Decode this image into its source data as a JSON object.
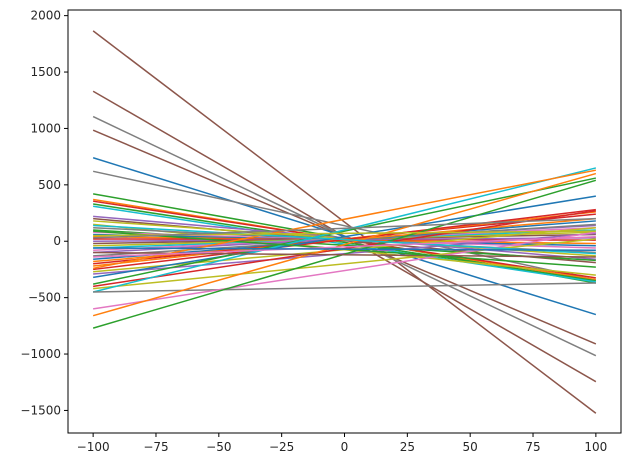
{
  "chart_data": {
    "type": "line",
    "title": "",
    "xlabel": "",
    "ylabel": "",
    "xlim": [
      -110,
      110
    ],
    "ylim": [
      -1700,
      2050
    ],
    "grid": false,
    "legend": "none",
    "x_ticks": [
      -100,
      -75,
      -50,
      -25,
      0,
      25,
      50,
      75,
      100
    ],
    "y_ticks": [
      -1500,
      -1000,
      -500,
      0,
      500,
      1000,
      1500,
      2000
    ],
    "series": [
      {
        "x": [
          -100,
          100
        ],
        "y": [
          1865,
          -1525
        ],
        "color": "#8c564b"
      },
      {
        "x": [
          -100,
          100
        ],
        "y": [
          1330,
          -1245
        ],
        "color": "#8c564b"
      },
      {
        "x": [
          -100,
          100
        ],
        "y": [
          985,
          -910
        ],
        "color": "#8c564b"
      },
      {
        "x": [
          -100,
          100
        ],
        "y": [
          1105,
          -1015
        ],
        "color": "#7f7f7f"
      },
      {
        "x": [
          -100,
          100
        ],
        "y": [
          740,
          -650
        ],
        "color": "#1f77b4"
      },
      {
        "x": [
          -100,
          100
        ],
        "y": [
          620,
          -345
        ],
        "color": "#7f7f7f"
      },
      {
        "x": [
          -100,
          100
        ],
        "y": [
          420,
          -370
        ],
        "color": "#2ca02c"
      },
      {
        "x": [
          -100,
          100
        ],
        "y": [
          370,
          -340
        ],
        "color": "#ff7f0e"
      },
      {
        "x": [
          -100,
          100
        ],
        "y": [
          355,
          -325
        ],
        "color": "#d62728"
      },
      {
        "x": [
          -100,
          100
        ],
        "y": [
          330,
          -350
        ],
        "color": "#2ca02c"
      },
      {
        "x": [
          -100,
          100
        ],
        "y": [
          310,
          -360
        ],
        "color": "#17becf"
      },
      {
        "x": [
          -100,
          100
        ],
        "y": [
          220,
          -160
        ],
        "color": "#9467bd"
      },
      {
        "x": [
          -100,
          100
        ],
        "y": [
          200,
          -190
        ],
        "color": "#8c564b"
      },
      {
        "x": [
          -100,
          100
        ],
        "y": [
          180,
          -130
        ],
        "color": "#bcbd22"
      },
      {
        "x": [
          -100,
          100
        ],
        "y": [
          150,
          -300
        ],
        "color": "#bcbd22"
      },
      {
        "x": [
          -100,
          100
        ],
        "y": [
          120,
          -100
        ],
        "color": "#7f7f7f"
      },
      {
        "x": [
          -100,
          100
        ],
        "y": [
          100,
          -170
        ],
        "color": "#2ca02c"
      },
      {
        "x": [
          -100,
          100
        ],
        "y": [
          80,
          -60
        ],
        "color": "#e377c2"
      },
      {
        "x": [
          -100,
          100
        ],
        "y": [
          60,
          -40
        ],
        "color": "#1f77b4"
      },
      {
        "x": [
          -100,
          100
        ],
        "y": [
          40,
          -20
        ],
        "color": "#ff7f0e"
      },
      {
        "x": [
          -100,
          100
        ],
        "y": [
          20,
          10
        ],
        "color": "#d62728"
      },
      {
        "x": [
          -100,
          100
        ],
        "y": [
          0,
          30
        ],
        "color": "#9467bd"
      },
      {
        "x": [
          -100,
          100
        ],
        "y": [
          -20,
          60
        ],
        "color": "#8c564b"
      },
      {
        "x": [
          -100,
          100
        ],
        "y": [
          -40,
          80
        ],
        "color": "#bcbd22"
      },
      {
        "x": [
          -100,
          100
        ],
        "y": [
          -60,
          100
        ],
        "color": "#17becf"
      },
      {
        "x": [
          -100,
          100
        ],
        "y": [
          -80,
          120
        ],
        "color": "#e377c2"
      },
      {
        "x": [
          -100,
          100
        ],
        "y": [
          -100,
          140
        ],
        "color": "#9467bd"
      },
      {
        "x": [
          -100,
          100
        ],
        "y": [
          -130,
          150
        ],
        "color": "#7f7f7f"
      },
      {
        "x": [
          -100,
          100
        ],
        "y": [
          -160,
          180
        ],
        "color": "#1f77b4"
      },
      {
        "x": [
          -100,
          100
        ],
        "y": [
          -180,
          200
        ],
        "color": "#ff7f0e"
      },
      {
        "x": [
          -100,
          100
        ],
        "y": [
          -200,
          240
        ],
        "color": "#d62728"
      },
      {
        "x": [
          -100,
          100
        ],
        "y": [
          -220,
          260
        ],
        "color": "#ff7f0e"
      },
      {
        "x": [
          -100,
          100
        ],
        "y": [
          -250,
          280
        ],
        "color": "#d62728"
      },
      {
        "x": [
          -100,
          100
        ],
        "y": [
          -270,
          120
        ],
        "color": "#bcbd22"
      },
      {
        "x": [
          -100,
          100
        ],
        "y": [
          -290,
          70
        ],
        "color": "#9467bd"
      },
      {
        "x": [
          -100,
          100
        ],
        "y": [
          -320,
          400
        ],
        "color": "#1f77b4"
      },
      {
        "x": [
          -100,
          100
        ],
        "y": [
          -380,
          560
        ],
        "color": "#2ca02c"
      },
      {
        "x": [
          -100,
          100
        ],
        "y": [
          -400,
          270
        ],
        "color": "#d62728"
      },
      {
        "x": [
          -100,
          100
        ],
        "y": [
          -420,
          20
        ],
        "color": "#bcbd22"
      },
      {
        "x": [
          -100,
          100
        ],
        "y": [
          -450,
          650
        ],
        "color": "#17becf"
      },
      {
        "x": [
          -100,
          100
        ],
        "y": [
          -450,
          -370
        ],
        "color": "#7f7f7f"
      },
      {
        "x": [
          -100,
          100
        ],
        "y": [
          -600,
          80
        ],
        "color": "#e377c2"
      },
      {
        "x": [
          -100,
          100
        ],
        "y": [
          -660,
          600
        ],
        "color": "#ff7f0e"
      },
      {
        "x": [
          -100,
          100
        ],
        "y": [
          -770,
          540
        ],
        "color": "#2ca02c"
      },
      {
        "x": [
          -100,
          100
        ],
        "y": [
          -100,
          -140
        ],
        "color": "#8c564b"
      },
      {
        "x": [
          -100,
          100
        ],
        "y": [
          90,
          -230
        ],
        "color": "#2ca02c"
      },
      {
        "x": [
          -100,
          100
        ],
        "y": [
          -240,
          630
        ],
        "color": "#ff7f0e"
      },
      {
        "x": [
          -100,
          100
        ],
        "y": [
          140,
          -110
        ],
        "color": "#17becf"
      },
      {
        "x": [
          -100,
          100
        ],
        "y": [
          50,
          90
        ],
        "color": "#bcbd22"
      },
      {
        "x": [
          -100,
          100
        ],
        "y": [
          -140,
          40
        ],
        "color": "#e377c2"
      },
      {
        "x": [
          -100,
          100
        ],
        "y": [
          -60,
          -80
        ],
        "color": "#1f77b4"
      },
      {
        "x": [
          -100,
          100
        ],
        "y": [
          30,
          200
        ],
        "color": "#7f7f7f"
      }
    ]
  }
}
